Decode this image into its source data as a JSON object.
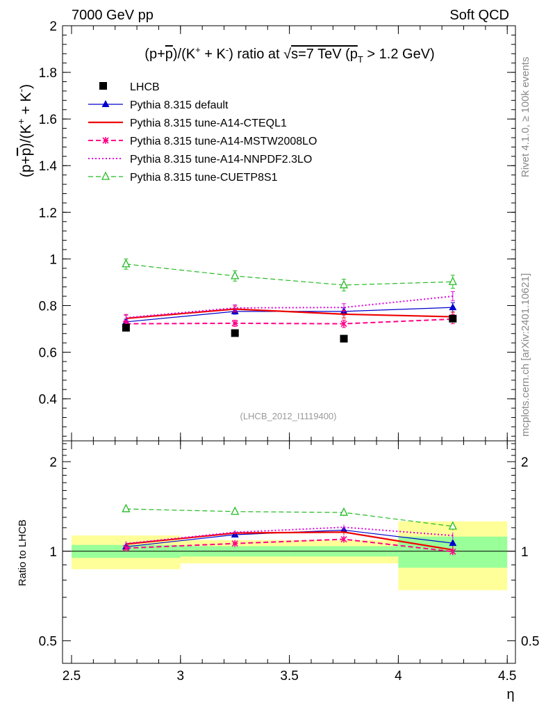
{
  "header": {
    "left": "7000 GeV pp",
    "right": "Soft QCD"
  },
  "side_labels": {
    "rivet": "Rivet 4.1.0, ≥ 100k events",
    "mcplots": "mcplots.cern.ch [arXiv:2401.10621]"
  },
  "chart_data": {
    "type": "line",
    "title": "(p+p̄)/(K⁺ + K⁻) ratio at √s=7 TeV (p_T > 1.2 GeV)",
    "title_parts": {
      "pre": "(p+",
      "pbar": "p",
      "mid1": ")/(K",
      "kplus": "+",
      "mid2": " + K",
      "kminus": "-",
      "mid3": ") ratio at ",
      "sqrt": "√",
      "s_part": "s=7 TeV (p",
      "T": "T",
      "end": " > 1.2 GeV)"
    },
    "ylabel_parts": {
      "pre": "(p+",
      "pbar": "p",
      "mid1": ")/(K",
      "kplus": "+",
      "mid2": " + K",
      "kminus": "-",
      "end": ")"
    },
    "analysis_id": "(LHCB_2012_I1119400)",
    "xlabel": "η",
    "ratio_ylabel": "Ratio to LHCB",
    "xlim": [
      2.5,
      4.5
    ],
    "ylim": [
      0.22,
      2.0
    ],
    "ratio_ylim": [
      0.42,
      2.35
    ],
    "x_ticks": [
      "2.5",
      "3",
      "3.5",
      "4",
      "4.5"
    ],
    "y_ticks": [
      "0.4",
      "0.6",
      "0.8",
      "1",
      "1.2",
      "1.4",
      "1.6",
      "1.8",
      "2"
    ],
    "ratio_y_ticks": [
      "0.5",
      "1",
      "2"
    ],
    "x": [
      2.75,
      3.25,
      3.75,
      4.25
    ],
    "x_bins": [
      [
        2.5,
        3.0
      ],
      [
        3.0,
        3.5
      ],
      [
        3.5,
        4.0
      ],
      [
        4.0,
        4.5
      ]
    ],
    "data": {
      "name": "LHCB",
      "values": [
        0.705,
        0.682,
        0.658,
        0.744
      ],
      "band_stat": [
        0.05,
        0.04,
        0.04,
        0.12
      ],
      "band_total": [
        0.13,
        0.09,
        0.09,
        0.26
      ]
    },
    "series": [
      {
        "name": "Pythia 8.315 default",
        "color": "#0000cc",
        "style": "solid",
        "width": 1.2,
        "marker": "triangle-filled",
        "values": [
          0.73,
          0.775,
          0.775,
          0.792
        ],
        "errors": [
          0.012,
          0.012,
          0.015,
          0.02
        ]
      },
      {
        "name": "Pythia 8.315 tune-A14-CTEQL1",
        "color": "#ee0000",
        "style": "solid",
        "width": 2.2,
        "marker": "none",
        "values": [
          0.745,
          0.785,
          0.763,
          0.752
        ],
        "errors": [
          0.014,
          0.013,
          0.016,
          0.02
        ]
      },
      {
        "name": "Pythia 8.315 tune-A14-MSTW2008LO",
        "color": "#ff0088",
        "style": "dashed",
        "width": 2.0,
        "marker": "star",
        "values": [
          0.722,
          0.724,
          0.722,
          0.742
        ],
        "errors": [
          0.014,
          0.013,
          0.016,
          0.02
        ]
      },
      {
        "name": "Pythia 8.315 tune-A14-NNPDF2.3LO",
        "color": "#dd00dd",
        "style": "dotted",
        "width": 2.0,
        "marker": "none",
        "values": [
          0.748,
          0.79,
          0.792,
          0.84
        ],
        "errors": [
          0.014,
          0.013,
          0.016,
          0.02
        ]
      },
      {
        "name": "Pythia 8.315 tune-CUETP8S1",
        "color": "#22bb22",
        "style": "dashed",
        "width": 1.2,
        "marker": "triangle-open",
        "values": [
          0.978,
          0.927,
          0.888,
          0.902
        ],
        "errors": [
          0.022,
          0.022,
          0.025,
          0.028
        ]
      }
    ]
  },
  "colors": {
    "band_stat": "#99ff99",
    "band_total": "#ffff99",
    "data_marker": "#000000"
  }
}
